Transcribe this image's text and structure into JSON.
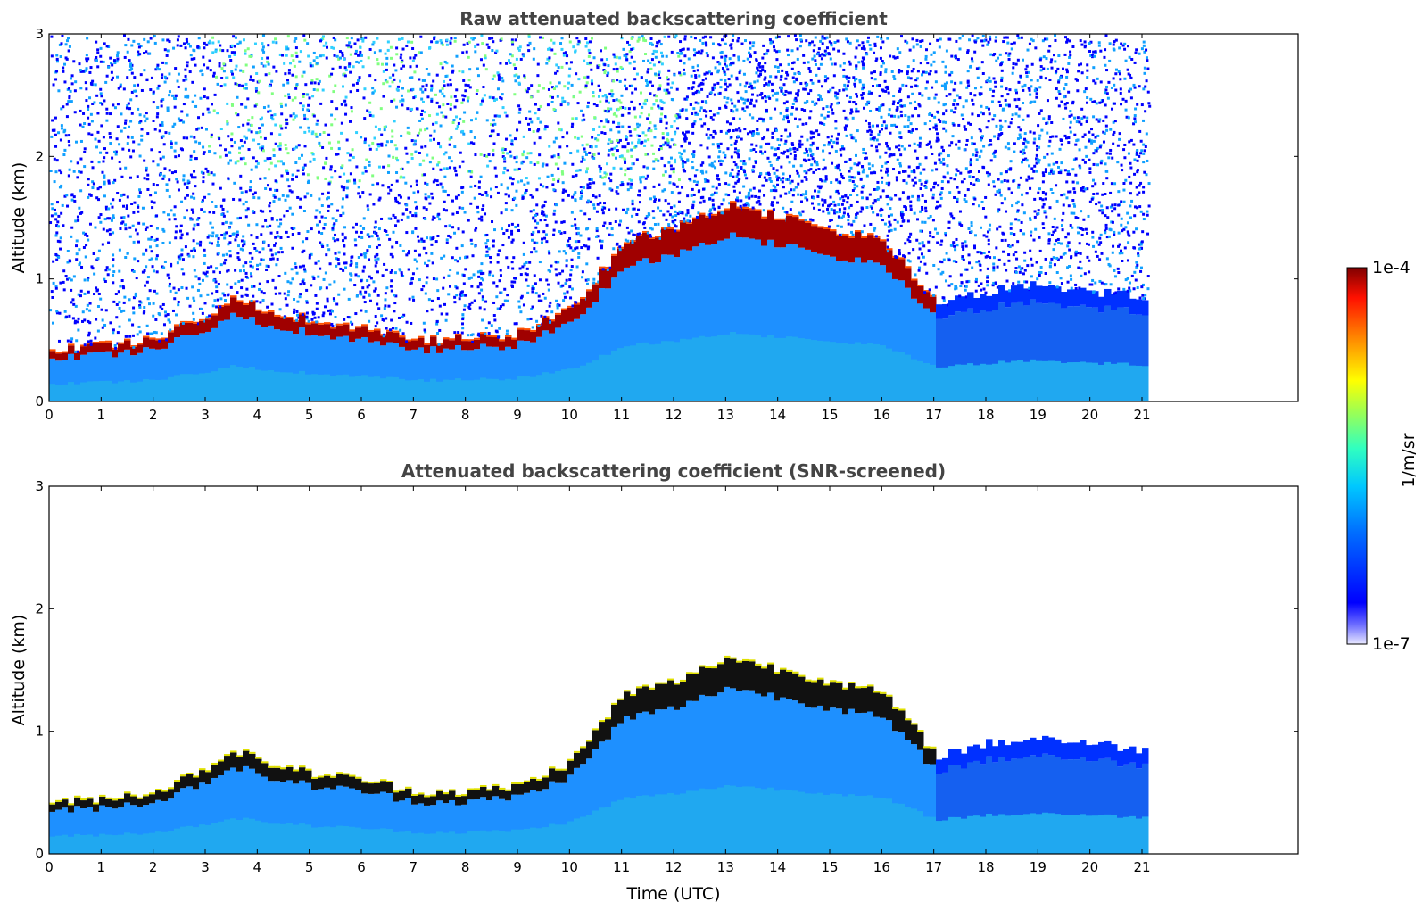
{
  "chart_data": [
    {
      "type": "heatmap",
      "title": "Raw attenuated backscattering coefficient",
      "xlabel": "",
      "ylabel": "Altitude (km)",
      "xlim": [
        0,
        24
      ],
      "ylim": [
        0,
        3
      ],
      "x_ticks": [
        "0",
        "1",
        "2",
        "3",
        "4",
        "5",
        "6",
        "7",
        "8",
        "9",
        "10",
        "11",
        "12",
        "13",
        "14",
        "15",
        "16",
        "17",
        "18",
        "19",
        "20",
        "21"
      ],
      "y_ticks": [
        "0",
        "1",
        "2",
        "3"
      ],
      "data_extent_hours": [
        0,
        21
      ],
      "aerosol_layer_top_km": [
        {
          "t": 0,
          "z": 0.4
        },
        {
          "t": 1,
          "z": 0.45
        },
        {
          "t": 2,
          "z": 0.5
        },
        {
          "t": 3,
          "z": 0.7
        },
        {
          "t": 3.5,
          "z": 0.85
        },
        {
          "t": 4,
          "z": 0.75
        },
        {
          "t": 5,
          "z": 0.65
        },
        {
          "t": 6,
          "z": 0.6
        },
        {
          "t": 7,
          "z": 0.5
        },
        {
          "t": 8,
          "z": 0.5
        },
        {
          "t": 9,
          "z": 0.55
        },
        {
          "t": 10,
          "z": 0.75
        },
        {
          "t": 11,
          "z": 1.3
        },
        {
          "t": 12,
          "z": 1.4
        },
        {
          "t": 13,
          "z": 1.6
        },
        {
          "t": 14,
          "z": 1.5
        },
        {
          "t": 15,
          "z": 1.4
        },
        {
          "t": 16,
          "z": 1.3
        },
        {
          "t": 17,
          "z": 0.8
        },
        {
          "t": 18,
          "z": 0.9
        },
        {
          "t": 19,
          "z": 0.95
        },
        {
          "t": 20,
          "z": 0.9
        },
        {
          "t": 21,
          "z": 0.85
        }
      ],
      "noise_above_layer": true
    },
    {
      "type": "heatmap",
      "title": "Attenuated backscattering coefficient (SNR-screened)",
      "xlabel": "Time (UTC)",
      "ylabel": "Altitude (km)",
      "xlim": [
        0,
        24
      ],
      "ylim": [
        0,
        3
      ],
      "x_ticks": [
        "0",
        "1",
        "2",
        "3",
        "4",
        "5",
        "6",
        "7",
        "8",
        "9",
        "10",
        "11",
        "12",
        "13",
        "14",
        "15",
        "16",
        "17",
        "18",
        "19",
        "20",
        "21"
      ],
      "y_ticks": [
        "0",
        "1",
        "2",
        "3"
      ],
      "data_extent_hours": [
        0,
        21
      ],
      "noise_above_layer": false
    }
  ],
  "colorbar": {
    "label": "1/m/sr",
    "max_label": "1e-4",
    "min_label": "1e-7",
    "colormap": "jet"
  }
}
